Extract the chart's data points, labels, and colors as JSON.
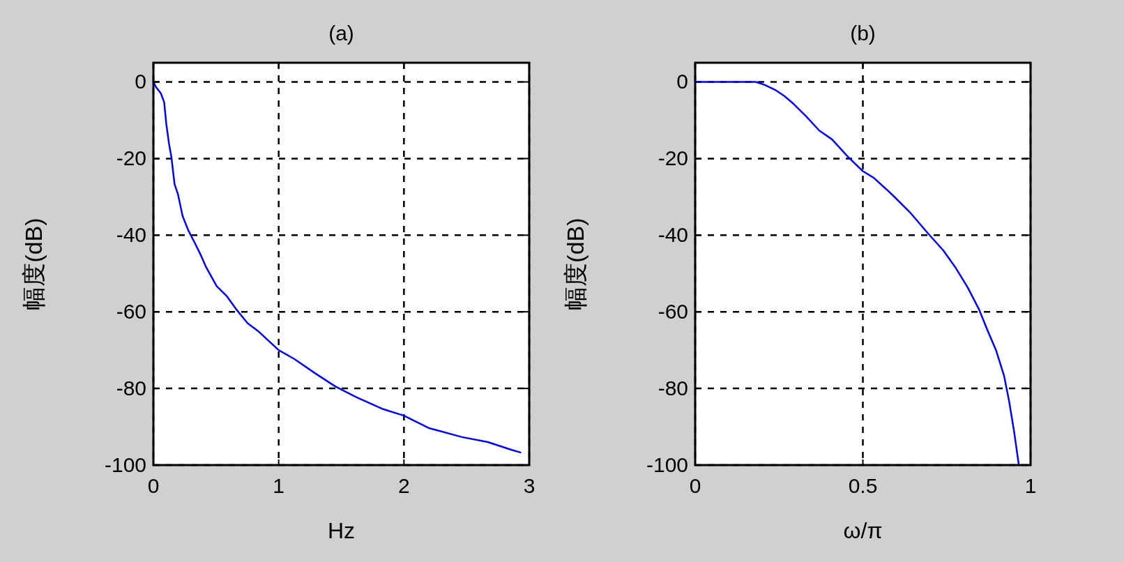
{
  "chart_data": [
    {
      "type": "line",
      "title": "(a)",
      "xlabel": "Hz",
      "ylabel": "幅度(dB)",
      "xlim": [
        0,
        3
      ],
      "ylim": [
        -100,
        5
      ],
      "xticks": [
        0,
        1,
        2,
        3
      ],
      "yticks": [
        0,
        -20,
        -40,
        -60,
        -80,
        -100
      ],
      "grid": true,
      "series": [
        {
          "color": "#0000ff",
          "x": [
            0,
            0.02,
            0.06,
            0.086,
            0.103,
            0.124,
            0.144,
            0.169,
            0.196,
            0.233,
            0.278,
            0.33,
            0.38,
            0.42,
            0.505,
            0.588,
            0.66,
            0.753,
            0.835,
            1.0,
            1.124,
            1.289,
            1.454,
            1.62,
            1.825,
            2.0,
            2.196,
            2.464,
            2.67,
            2.856,
            2.93
          ],
          "values": [
            0,
            -1.3,
            -3,
            -5.3,
            -11,
            -16,
            -19.7,
            -26.7,
            -29.3,
            -35,
            -38.7,
            -42,
            -45.3,
            -48.3,
            -53.3,
            -56,
            -59.3,
            -63,
            -65,
            -70,
            -72.3,
            -76,
            -79.5,
            -82.3,
            -85.3,
            -87.1,
            -90.3,
            -92.7,
            -94,
            -96,
            -96.7
          ]
        }
      ]
    },
    {
      "type": "line",
      "title": "(b)",
      "xlabel": "ω/π",
      "ylabel": "幅度(dB)",
      "xlim": [
        0,
        1
      ],
      "ylim": [
        -100,
        5
      ],
      "xticks": [
        0,
        0.5,
        1
      ],
      "yticks": [
        0,
        -20,
        -40,
        -60,
        -80,
        -100
      ],
      "grid": true,
      "series": [
        {
          "color": "#0000ff",
          "x": [
            0,
            0.181,
            0.208,
            0.239,
            0.266,
            0.293,
            0.331,
            0.37,
            0.408,
            0.455,
            0.5,
            0.532,
            0.586,
            0.64,
            0.692,
            0.74,
            0.778,
            0.813,
            0.847,
            0.871,
            0.897,
            0.921,
            0.936,
            0.951,
            0.963,
            0.965
          ],
          "values": [
            0,
            0,
            -0.8,
            -2.1,
            -3.7,
            -5.7,
            -9,
            -12.7,
            -15,
            -19.5,
            -23.3,
            -25,
            -29.3,
            -34,
            -39.3,
            -44,
            -48.7,
            -53.7,
            -59.5,
            -64.7,
            -70,
            -76.7,
            -83.3,
            -91.3,
            -98.7,
            -100
          ]
        }
      ]
    }
  ]
}
